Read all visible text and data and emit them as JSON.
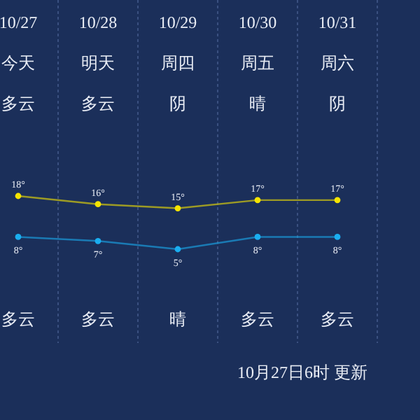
{
  "chart_data": {
    "type": "line",
    "categories": [
      "10/27",
      "10/28",
      "10/29",
      "10/30",
      "10/31"
    ],
    "series": [
      {
        "color": "#f5e400",
        "values": [
          18,
          16,
          15,
          17,
          17
        ],
        "value_labels": [
          "18°",
          "16°",
          "15°",
          "17°",
          "17°"
        ]
      },
      {
        "color": "#1aaef0",
        "values": [
          8,
          7,
          5,
          8,
          8
        ],
        "value_labels": [
          "8°",
          "7°",
          "5°",
          "8°",
          "8°"
        ]
      }
    ],
    "annotations": [
      "今天",
      "明天",
      "周四",
      "周五",
      "周六",
      "多云",
      "多云",
      "阴",
      "晴",
      "阴",
      "多云",
      "多云",
      "晴",
      "多云",
      "多云",
      "10月27日6时 更新"
    ],
    "marker": "circle",
    "grid": "x"
  }
}
